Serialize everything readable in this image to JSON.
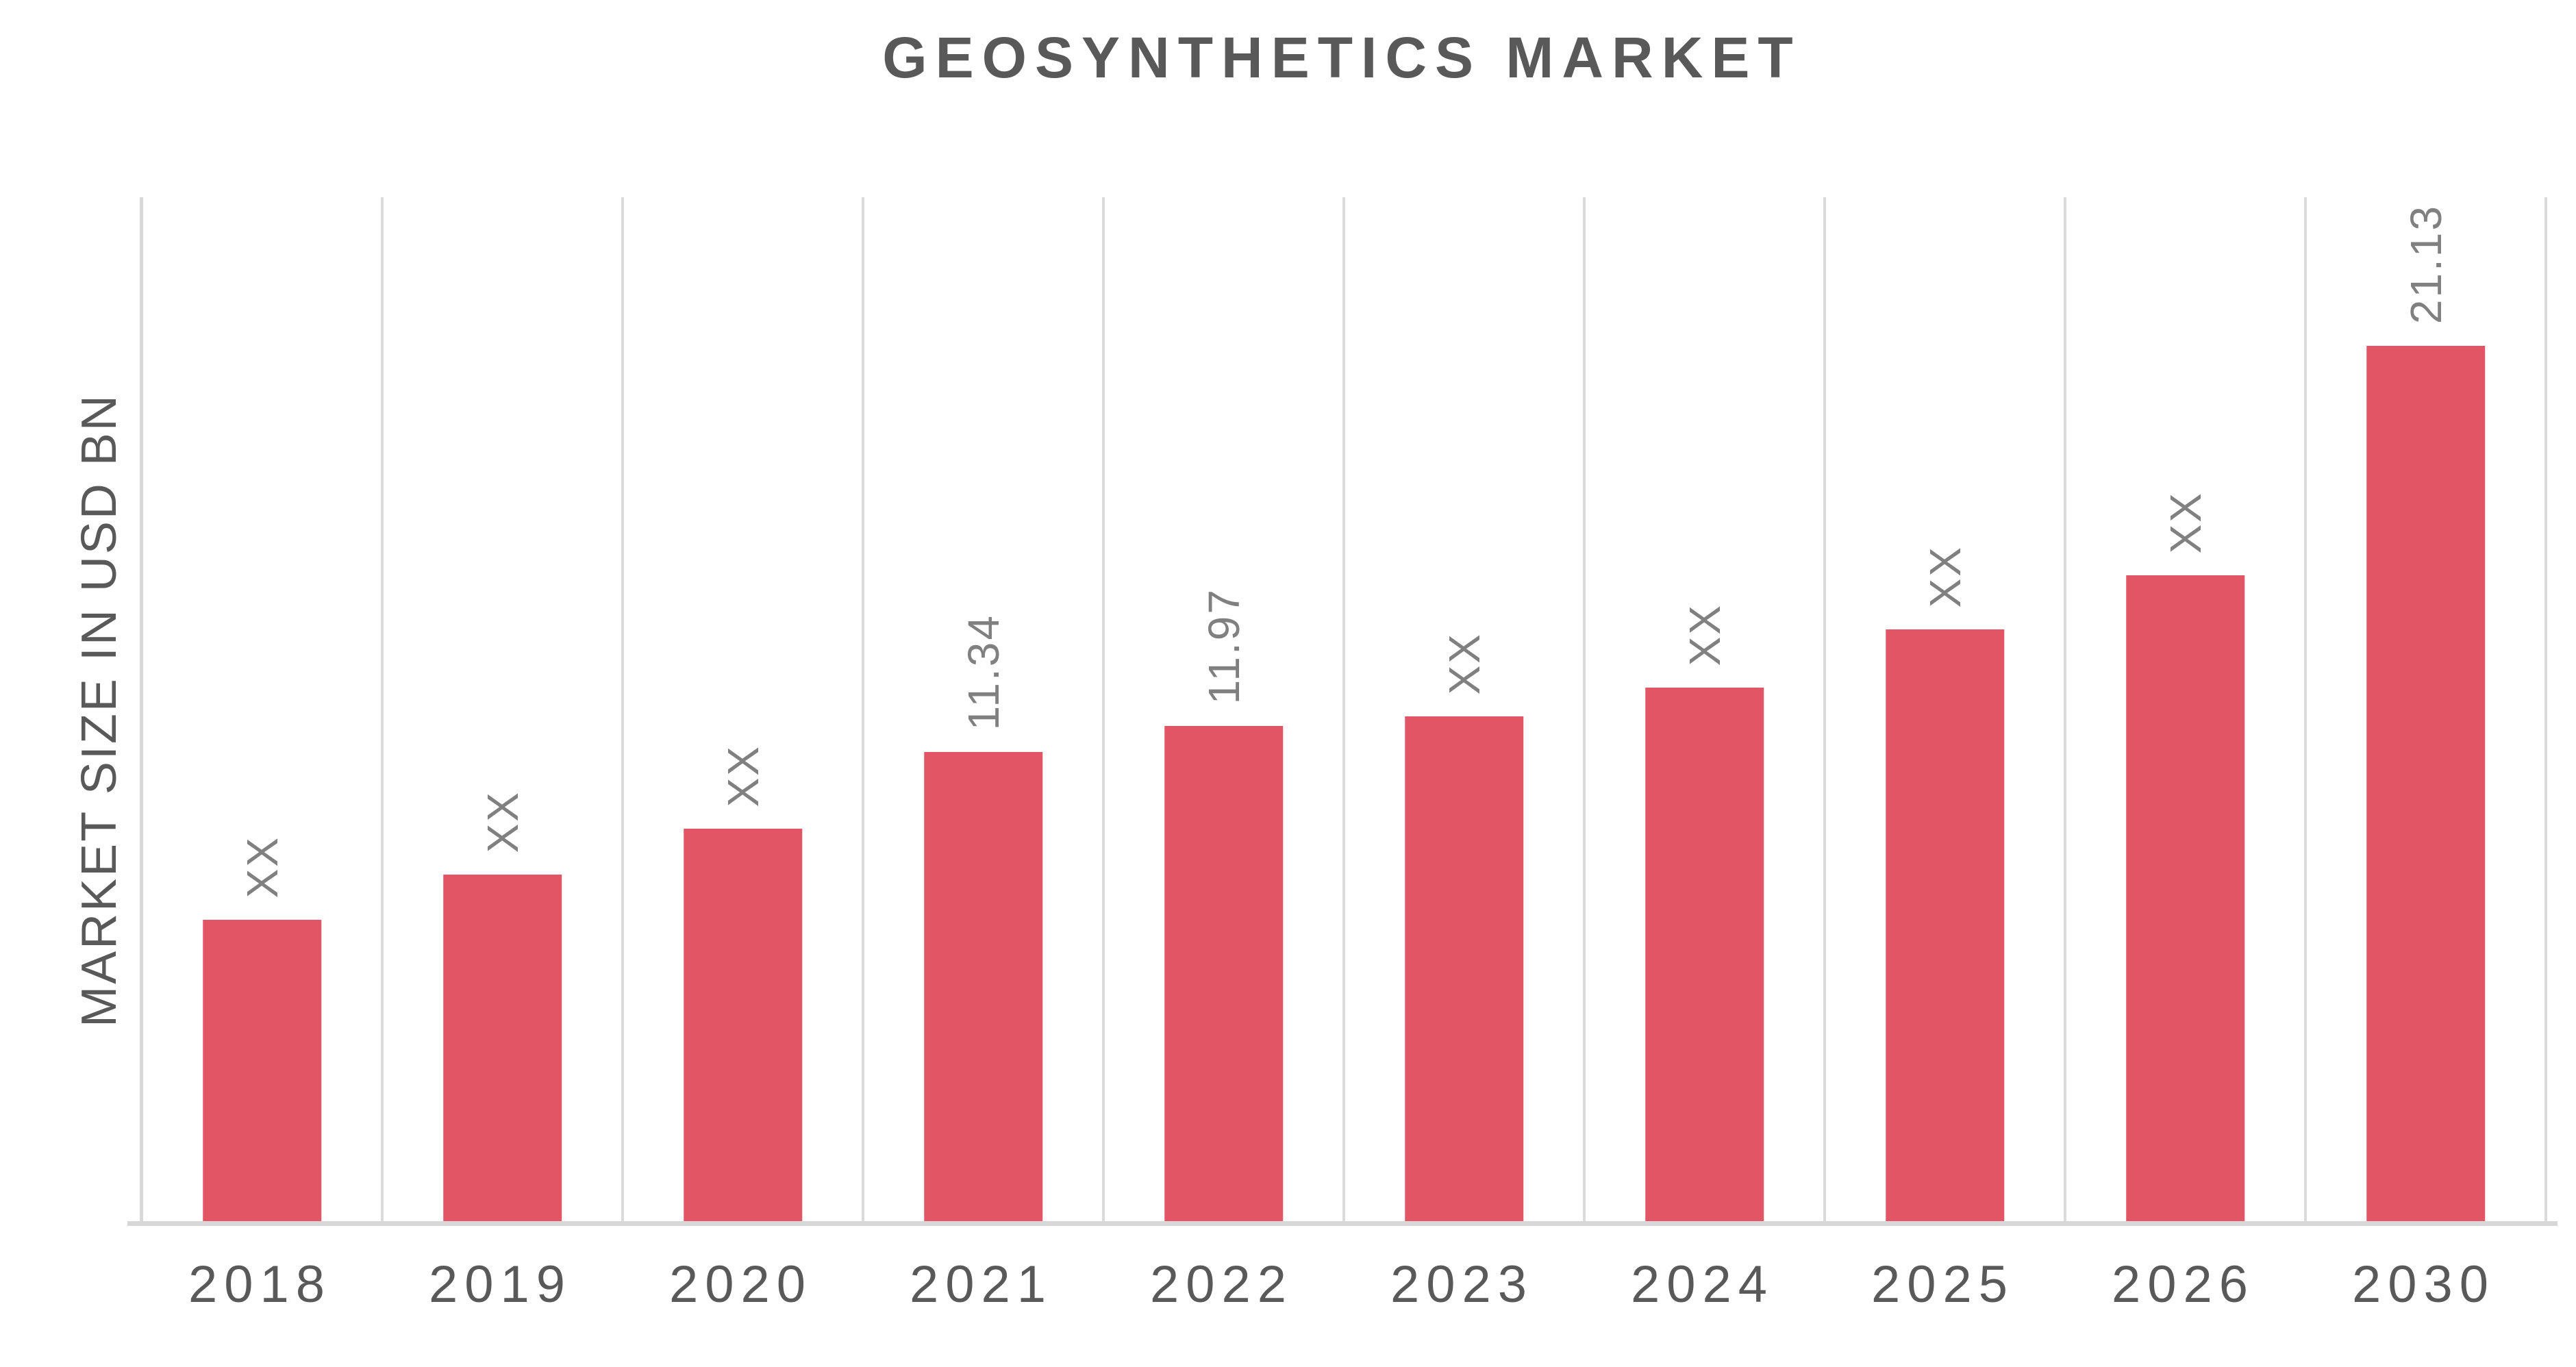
{
  "page": {
    "background": "#ffffff"
  },
  "chart_data": {
    "type": "bar",
    "title": "GEOSYNTHETICS MARKET",
    "ylabel": "MARKET SIZE IN USD BN",
    "xlabel": "",
    "categories": [
      "2018",
      "2019",
      "2020",
      "2021",
      "2022",
      "2023",
      "2024",
      "2025",
      "2026",
      "2030"
    ],
    "bar_labels": [
      "XX",
      "XX",
      "XX",
      "11.34",
      "11.97",
      "XX",
      "XX",
      "XX",
      "XX",
      "21.13"
    ],
    "values": [
      7.3,
      8.4,
      9.5,
      11.34,
      11.97,
      12.2,
      12.9,
      14.3,
      15.6,
      21.13
    ],
    "values_note": "Bars labeled XX are masked in source; numeric values for them are estimated from bar pixel heights. 11.34 (2021), 11.97 (2022) and 21.13 (2030) are printed on the chart.",
    "ylim": [
      0,
      24.7
    ],
    "yaxis_ticks": "none",
    "grid": "vertical category separator lines only",
    "legend": "none",
    "bar_label_rotation": "90deg counter-clockwise (reads bottom-to-top)",
    "colors": {
      "bar": "#E25565",
      "grid": "#DBDBDB",
      "axis": "#D8D8D8",
      "title_text": "#595959",
      "tick_text": "#595959",
      "value_label_text": "#808080"
    }
  }
}
